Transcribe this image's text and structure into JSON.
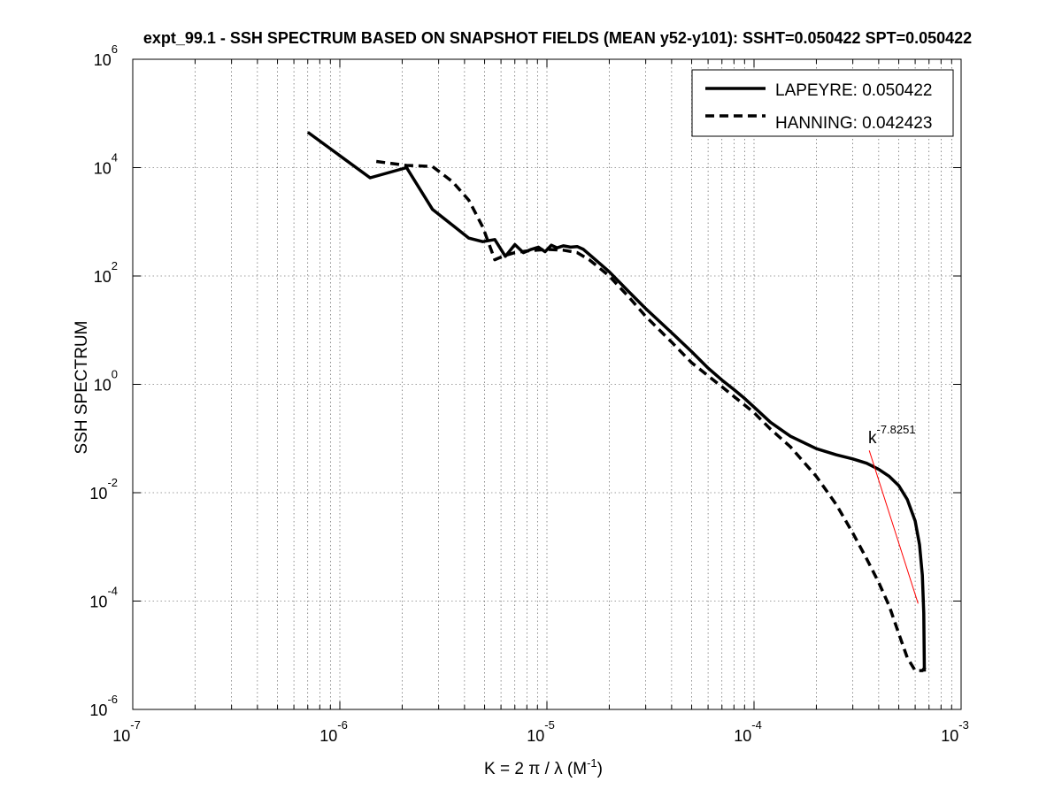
{
  "chart_data": {
    "type": "line",
    "title": "expt_99.1 - SSH SPECTRUM BASED ON SNAPSHOT FIELDS (MEAN y52-y101): SSHT=0.050422 SPT=0.050422",
    "xlabel": "K = 2 π / λ  (M",
    "xlabel_sup": "-1",
    "xlabel_tail": ")",
    "ylabel": "SSH SPECTRUM",
    "xscale": "log",
    "yscale": "log",
    "xlim": [
      1e-07,
      0.001
    ],
    "ylim": [
      1e-06,
      1000000.0
    ],
    "grid": true,
    "legend_position": "top-right",
    "x_ticks": [
      {
        "exp": "-7",
        "value": 1e-07
      },
      {
        "exp": "-6",
        "value": 1e-06
      },
      {
        "exp": "-5",
        "value": 1e-05
      },
      {
        "exp": "-4",
        "value": 0.0001
      },
      {
        "exp": "-3",
        "value": 0.001
      }
    ],
    "y_ticks": [
      {
        "exp": "-6",
        "value": 1e-06
      },
      {
        "exp": "-4",
        "value": 0.0001
      },
      {
        "exp": "-2",
        "value": 0.01
      },
      {
        "exp": "0",
        "value": 1
      },
      {
        "exp": "2",
        "value": 100.0
      },
      {
        "exp": "4",
        "value": 10000.0
      },
      {
        "exp": "6",
        "value": 1000000.0
      }
    ],
    "tick_base": "10",
    "series": [
      {
        "name": "LAPEYRE",
        "legend_label": "LAPEYRE: 0.050422",
        "style": "solid",
        "color": "#000000",
        "points": [
          [
            7e-07,
            45000
          ],
          [
            1.4e-06,
            6500
          ],
          [
            2.1e-06,
            10000
          ],
          [
            2.8e-06,
            1700
          ],
          [
            4.2e-06,
            500
          ],
          [
            4.9e-06,
            430
          ],
          [
            5.6e-06,
            470
          ],
          [
            6.3e-06,
            230
          ],
          [
            7e-06,
            380
          ],
          [
            7.7e-06,
            270
          ],
          [
            8.4e-06,
            310
          ],
          [
            9.1e-06,
            340
          ],
          [
            9.8e-06,
            280
          ],
          [
            1.05e-05,
            370
          ],
          [
            1.12e-05,
            330
          ],
          [
            1.2e-05,
            360
          ],
          [
            1.3e-05,
            340
          ],
          [
            1.4e-05,
            350
          ],
          [
            1.5e-05,
            310
          ],
          [
            1.6e-05,
            250
          ],
          [
            2e-05,
            120
          ],
          [
            2.5e-05,
            50
          ],
          [
            3e-05,
            25
          ],
          [
            4e-05,
            9
          ],
          [
            5e-05,
            4
          ],
          [
            6e-05,
            2
          ],
          [
            7e-05,
            1.2
          ],
          [
            8e-05,
            0.8
          ],
          [
            9e-05,
            0.55
          ],
          [
            0.0001,
            0.38
          ],
          [
            0.00012,
            0.2
          ],
          [
            0.00015,
            0.11
          ],
          [
            0.0002,
            0.065
          ],
          [
            0.00025,
            0.05
          ],
          [
            0.0003,
            0.042
          ],
          [
            0.00035,
            0.035
          ],
          [
            0.0004,
            0.027
          ],
          [
            0.00045,
            0.02
          ],
          [
            0.0005,
            0.0135
          ],
          [
            0.00055,
            0.0075
          ],
          [
            0.0006,
            0.003
          ],
          [
            0.00063,
            0.0011
          ],
          [
            0.00065,
            0.0003
          ],
          [
            0.00066,
            6e-05
          ],
          [
            0.000665,
            5e-06
          ]
        ]
      },
      {
        "name": "HANNING",
        "legend_label": "HANNING: 0.042423",
        "style": "dashed",
        "color": "#000000",
        "points": [
          [
            1.5e-06,
            13000
          ],
          [
            2.1e-06,
            11000
          ],
          [
            2.8e-06,
            10500
          ],
          [
            3.5e-06,
            5500
          ],
          [
            4.2e-06,
            2500
          ],
          [
            4.9e-06,
            800
          ],
          [
            5.6e-06,
            200
          ],
          [
            6.3e-06,
            240
          ],
          [
            7e-06,
            270
          ],
          [
            8e-06,
            290
          ],
          [
            9e-06,
            300
          ],
          [
            1e-05,
            310
          ],
          [
            1.2e-05,
            300
          ],
          [
            1.4e-05,
            270
          ],
          [
            1.6e-05,
            200
          ],
          [
            2e-05,
            100
          ],
          [
            2.5e-05,
            40
          ],
          [
            3e-05,
            18
          ],
          [
            4e-05,
            6
          ],
          [
            5e-05,
            2.5
          ],
          [
            7e-05,
            0.9
          ],
          [
            0.0001,
            0.3
          ],
          [
            0.00012,
            0.15
          ],
          [
            0.00015,
            0.07
          ],
          [
            0.0002,
            0.02
          ],
          [
            0.00025,
            0.006
          ],
          [
            0.0003,
            0.0018
          ],
          [
            0.00035,
            0.0006
          ],
          [
            0.0004,
            0.00022
          ],
          [
            0.00045,
            8e-05
          ],
          [
            0.0005,
            2.5e-05
          ],
          [
            0.00055,
            9e-06
          ],
          [
            0.0006,
            5.2e-06
          ],
          [
            0.00065,
            5.2e-06
          ],
          [
            0.00067,
            6e-06
          ]
        ]
      }
    ],
    "fit_line": {
      "color": "#ff0000",
      "exponent_text": "-7.8251",
      "base_text": "k",
      "points": [
        [
          0.00036,
          0.06
        ],
        [
          0.00062,
          9e-05
        ]
      ]
    }
  }
}
